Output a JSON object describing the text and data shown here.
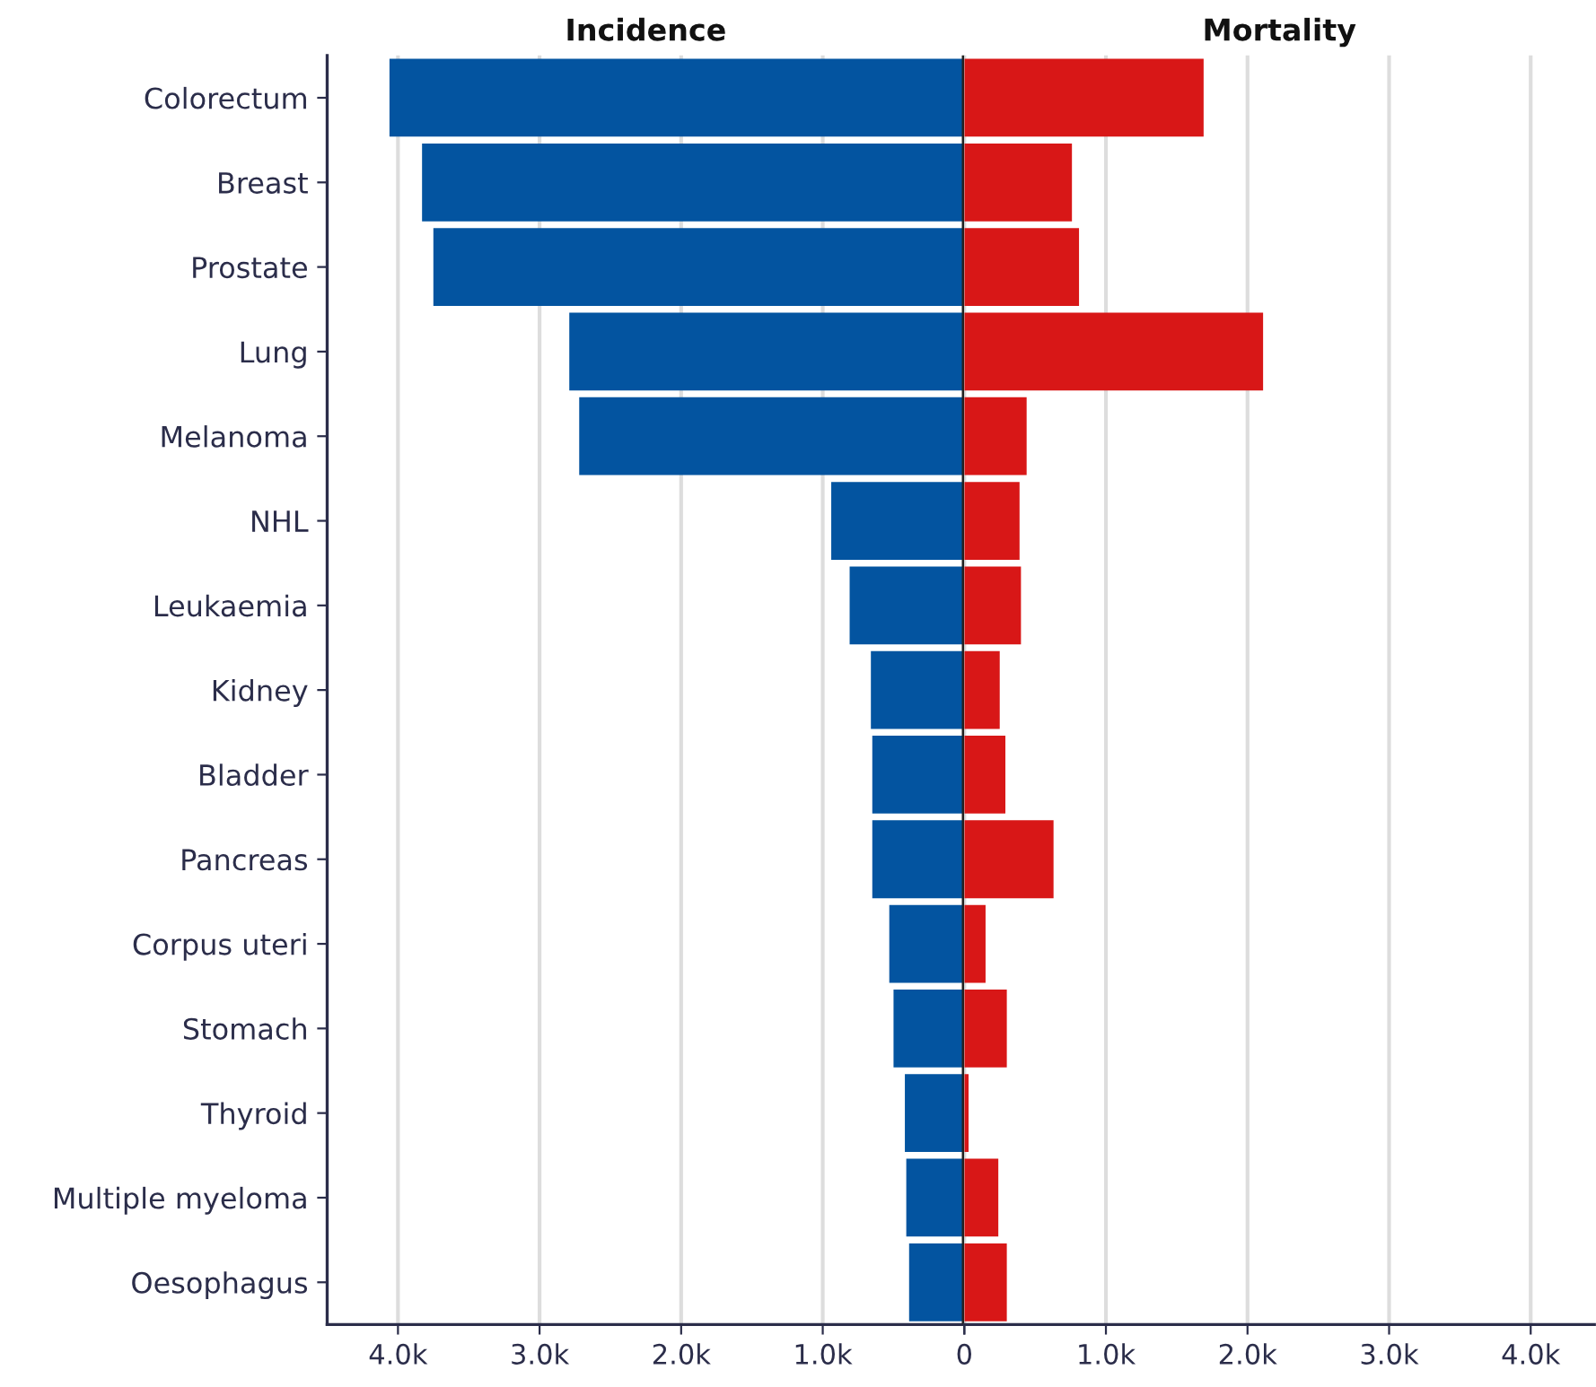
{
  "chart_data": [
    {
      "type": "bar",
      "orientation": "horizontal",
      "title": "Incidence",
      "categories": [
        "Colorectum",
        "Breast",
        "Prostate",
        "Lung",
        "Melanoma",
        "NHL",
        "Leukaemia",
        "Kidney",
        "Bladder",
        "Pancreas",
        "Corpus uteri",
        "Stomach",
        "Thyroid",
        "Multiple myeloma",
        "Oesophagus"
      ],
      "values": [
        4.06,
        3.83,
        3.75,
        2.79,
        2.72,
        0.94,
        0.81,
        0.66,
        0.65,
        0.65,
        0.53,
        0.5,
        0.42,
        0.41,
        0.39
      ],
      "color": "#0354a0",
      "xlim": [
        4.5,
        0
      ],
      "xticks": [
        {
          "value": 4,
          "label": "4.0k"
        },
        {
          "value": 3,
          "label": "3.0k"
        },
        {
          "value": 2,
          "label": "2.0k"
        },
        {
          "value": 1,
          "label": "1.0k"
        },
        0
      ],
      "grid": "x",
      "ref_lines": [
        {
          "axis": "x",
          "value": 0,
          "color": "#222222"
        }
      ]
    },
    {
      "type": "bar",
      "orientation": "horizontal",
      "title": "Mortality",
      "categories": [
        null,
        null,
        null,
        null,
        null,
        null,
        null,
        null,
        null,
        null,
        null,
        null,
        null,
        null,
        null
      ],
      "values": [
        1.69,
        0.76,
        0.81,
        2.11,
        0.44,
        0.39,
        0.4,
        0.25,
        0.29,
        0.63,
        0.15,
        0.3,
        0.03,
        0.24,
        0.3
      ],
      "color": "#d81717",
      "xlim": [
        0,
        4.45
      ],
      "xticks": [
        {
          "value": 0,
          "label": null
        },
        {
          "value": 1,
          "label": "1.0k"
        },
        {
          "value": 2,
          "label": "2.0k"
        },
        {
          "value": 3,
          "label": "3.0k"
        },
        {
          "value": 4,
          "label": "4.0k"
        }
      ],
      "grid": "x",
      "tick_labels": "x"
    }
  ]
}
